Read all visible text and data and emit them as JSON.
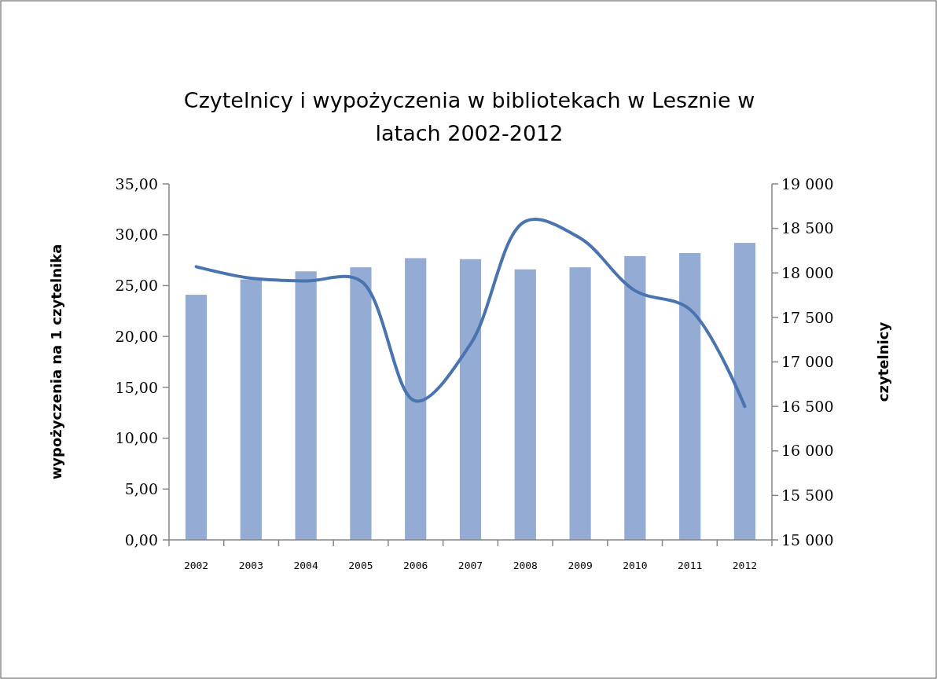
{
  "chart_data": {
    "type": "bar",
    "title": "Czytelnicy i wypożyczenia w bibliotekach w Lesznie w latach 2002-2012",
    "ylabel": "wypożyczenia na 1 czytelnika",
    "y2label": "czytelnicy",
    "categories": [
      "2002",
      "2003",
      "2004",
      "2005",
      "2006",
      "2007",
      "2008",
      "2009",
      "2010",
      "2011",
      "2012"
    ],
    "series": [
      {
        "color": "#94abd3",
        "values": [
          24.1,
          25.6,
          26.4,
          26.8,
          27.7,
          27.6,
          26.6,
          26.8,
          27.9,
          28.2,
          29.2
        ]
      },
      {
        "type": "line",
        "axis": "y2",
        "color": "#4a74b0",
        "values": [
          18070,
          17940,
          17910,
          17910,
          16560,
          17200,
          18580,
          18390,
          17800,
          17590,
          16500
        ]
      }
    ],
    "ylim": [
      0,
      35
    ],
    "yticks": [
      {
        "value": 0,
        "label": "0,00"
      },
      {
        "value": 5,
        "label": "5,00"
      },
      {
        "value": 10,
        "label": "10,00"
      },
      {
        "value": 15,
        "label": "15,00"
      },
      {
        "value": 20,
        "label": "20,00"
      },
      {
        "value": 25,
        "label": "25,00"
      },
      {
        "value": 30,
        "label": "30,00"
      },
      {
        "value": 35,
        "label": "35,00"
      }
    ],
    "y2lim": [
      15000,
      19000
    ],
    "y2ticks": [
      {
        "value": 15000,
        "label": "15 000"
      },
      {
        "value": 15500,
        "label": "15 500"
      },
      {
        "value": 16000,
        "label": "16 000"
      },
      {
        "value": 16500,
        "label": "16 500"
      },
      {
        "value": 17000,
        "label": "17 000"
      },
      {
        "value": 17500,
        "label": "17 500"
      },
      {
        "value": 18000,
        "label": "18 000"
      },
      {
        "value": 18500,
        "label": "18 500"
      },
      {
        "value": 19000,
        "label": "19 000"
      }
    ],
    "grid": false,
    "marker": "none",
    "line_style": "solid"
  }
}
